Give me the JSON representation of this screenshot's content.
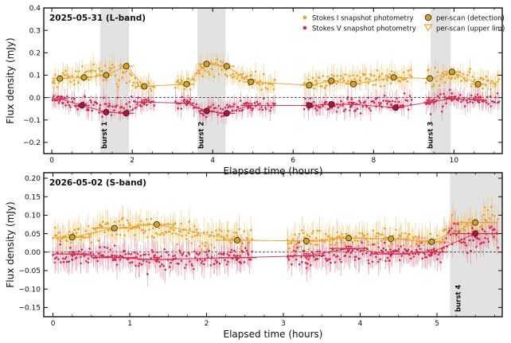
{
  "colors": {
    "stokes_i": "#e8a32a",
    "stokes_i_err": "#f0c064",
    "stokes_v": "#d1284f",
    "stokes_v_err": "#e57a92",
    "burst_shade": "#e2e2e2",
    "detection_face_i": "#d6a21c",
    "detection_face_v": "#b0123d"
  },
  "legend": {
    "stokes_i": "Stokes I  snapshot photometry",
    "stokes_v": "Stokes V  snapshot photometry",
    "detection": "per-scan (detection)",
    "upper_limit": "per-scan (upper lim)"
  },
  "chart_data": [
    {
      "type": "scatter",
      "title": "2025-05-31 (L-band)",
      "xlabel": "Elapsed time (hours)",
      "ylabel": "Flux density (mJy)",
      "xlim": [
        -0.2,
        11.2
      ],
      "ylim": [
        -0.25,
        0.4
      ],
      "xticks": [
        0,
        2,
        4,
        6,
        8,
        10
      ],
      "yticks": [
        -0.2,
        -0.1,
        0.0,
        0.1,
        0.2,
        0.3,
        0.4
      ],
      "ytick_labels": [
        "−0.2",
        "−0.1",
        "0.0",
        "0.1",
        "0.2",
        "0.3",
        "0.4"
      ],
      "zero_line": true,
      "legend_position": "top-right",
      "bursts": [
        {
          "label": "burst 1",
          "x0": 1.2,
          "x1": 1.92
        },
        {
          "label": "burst 2",
          "x0": 3.62,
          "x1": 4.32
        },
        {
          "label": "burst 3",
          "x0": 9.42,
          "x1": 9.92
        }
      ],
      "gaps": [
        [
          2.55,
          3.05
        ],
        [
          5.55,
          6.25
        ],
        [
          8.95,
          9.3
        ]
      ],
      "stokes_i_level": [
        [
          0.0,
          0.075
        ],
        [
          1.4,
          0.13
        ],
        [
          2.3,
          0.06
        ],
        [
          3.4,
          0.065
        ],
        [
          3.9,
          0.15
        ],
        [
          5.2,
          0.07
        ],
        [
          6.3,
          0.07
        ],
        [
          8.0,
          0.085
        ],
        [
          9.6,
          0.1
        ],
        [
          10.4,
          0.085
        ],
        [
          11.1,
          0.07
        ]
      ],
      "stokes_v_level": [
        [
          0.0,
          -0.005
        ],
        [
          1.3,
          -0.05
        ],
        [
          2.3,
          -0.02
        ],
        [
          3.4,
          -0.025
        ],
        [
          3.9,
          -0.06
        ],
        [
          5.2,
          -0.035
        ],
        [
          6.3,
          -0.04
        ],
        [
          8.0,
          -0.03
        ],
        [
          9.6,
          -0.01
        ],
        [
          10.4,
          -0.01
        ],
        [
          11.1,
          -0.01
        ]
      ],
      "stokes_i_noise": 0.045,
      "stokes_v_noise": 0.04,
      "points_per_hour": 34,
      "scan_i": [
        {
          "x": 0.2,
          "y": 0.085,
          "xerr": 0.2,
          "yerr": 0.012,
          "detect": true
        },
        {
          "x": 0.8,
          "y": 0.09,
          "xerr": 0.2,
          "yerr": 0.012,
          "detect": true
        },
        {
          "x": 1.35,
          "y": 0.1,
          "xerr": 0.15,
          "yerr": 0.015,
          "detect": true
        },
        {
          "x": 1.85,
          "y": 0.14,
          "xerr": 0.2,
          "yerr": 0.015,
          "detect": true
        },
        {
          "x": 2.3,
          "y": 0.05,
          "xerr": 0.2,
          "yerr": 0.012,
          "detect": true
        },
        {
          "x": 3.35,
          "y": 0.06,
          "xerr": 0.2,
          "yerr": 0.012,
          "detect": true
        },
        {
          "x": 3.85,
          "y": 0.15,
          "xerr": 0.2,
          "yerr": 0.015,
          "detect": true
        },
        {
          "x": 4.35,
          "y": 0.14,
          "xerr": 0.2,
          "yerr": 0.015,
          "detect": true
        },
        {
          "x": 4.95,
          "y": 0.07,
          "xerr": 0.2,
          "yerr": 0.012,
          "detect": true
        },
        {
          "x": 6.4,
          "y": 0.055,
          "xerr": 0.2,
          "yerr": 0.012,
          "detect": true
        },
        {
          "x": 6.95,
          "y": 0.075,
          "xerr": 0.2,
          "yerr": 0.012,
          "detect": true
        },
        {
          "x": 7.5,
          "y": 0.06,
          "xerr": 0.2,
          "yerr": 0.012,
          "detect": true
        },
        {
          "x": 8.5,
          "y": 0.09,
          "xerr": 0.2,
          "yerr": 0.012,
          "detect": true
        },
        {
          "x": 9.4,
          "y": 0.085,
          "xerr": 0.15,
          "yerr": 0.012,
          "detect": true
        },
        {
          "x": 9.95,
          "y": 0.115,
          "xerr": 0.2,
          "yerr": 0.015,
          "detect": true
        },
        {
          "x": 10.6,
          "y": 0.06,
          "xerr": 0.2,
          "yerr": 0.012,
          "detect": true
        }
      ],
      "scan_v": [
        {
          "x": 0.2,
          "y": -0.005,
          "xerr": 0.2,
          "yerr": 0.012,
          "detect": false
        },
        {
          "x": 0.75,
          "y": -0.035,
          "xerr": 0.2,
          "yerr": 0.012,
          "detect": true
        },
        {
          "x": 1.35,
          "y": -0.065,
          "xerr": 0.15,
          "yerr": 0.015,
          "detect": true
        },
        {
          "x": 1.85,
          "y": -0.07,
          "xerr": 0.2,
          "yerr": 0.015,
          "detect": true
        },
        {
          "x": 2.3,
          "y": -0.02,
          "xerr": 0.2,
          "yerr": 0.012,
          "detect": false
        },
        {
          "x": 3.35,
          "y": -0.025,
          "xerr": 0.2,
          "yerr": 0.012,
          "detect": false
        },
        {
          "x": 3.85,
          "y": -0.06,
          "xerr": 0.2,
          "yerr": 0.015,
          "detect": true
        },
        {
          "x": 4.35,
          "y": -0.07,
          "xerr": 0.2,
          "yerr": 0.015,
          "detect": true
        },
        {
          "x": 4.9,
          "y": -0.035,
          "xerr": 0.2,
          "yerr": 0.012,
          "detect": false
        },
        {
          "x": 6.4,
          "y": -0.035,
          "xerr": 0.2,
          "yerr": 0.012,
          "detect": true
        },
        {
          "x": 6.95,
          "y": -0.03,
          "xerr": 0.2,
          "yerr": 0.012,
          "detect": true
        },
        {
          "x": 7.45,
          "y": -0.03,
          "xerr": 0.2,
          "yerr": 0.012,
          "detect": false
        },
        {
          "x": 8.55,
          "y": -0.045,
          "xerr": 0.2,
          "yerr": 0.012,
          "detect": true
        },
        {
          "x": 9.4,
          "y": -0.02,
          "xerr": 0.15,
          "yerr": 0.012,
          "detect": false
        },
        {
          "x": 9.95,
          "y": -0.005,
          "xerr": 0.2,
          "yerr": 0.012,
          "detect": false
        },
        {
          "x": 10.6,
          "y": -0.01,
          "xerr": 0.2,
          "yerr": 0.012,
          "detect": false
        }
      ]
    },
    {
      "type": "scatter",
      "title": "2026-05-02 (S-band)",
      "xlabel": "Elapsed time (hours)",
      "ylabel": "Flux density (mJy)",
      "xlim": [
        -0.12,
        5.85
      ],
      "ylim": [
        -0.175,
        0.215
      ],
      "xticks": [
        0,
        1,
        2,
        3,
        4,
        5
      ],
      "yticks": [
        -0.15,
        -0.1,
        -0.05,
        0.0,
        0.05,
        0.1,
        0.15,
        0.2
      ],
      "ytick_labels": [
        "−0.15",
        "−0.10",
        "−0.05",
        "0.00",
        "0.05",
        "0.10",
        "0.15",
        "0.20"
      ],
      "zero_line": true,
      "legend_position": "none",
      "bursts": [
        {
          "label": "burst 4",
          "x0": 5.17,
          "x1": 5.85
        }
      ],
      "gaps": [
        [
          2.6,
          3.05
        ]
      ],
      "stokes_i_level": [
        [
          0.0,
          0.045
        ],
        [
          0.8,
          0.065
        ],
        [
          1.5,
          0.07
        ],
        [
          2.0,
          0.035
        ],
        [
          3.1,
          0.035
        ],
        [
          4.0,
          0.035
        ],
        [
          5.0,
          0.03
        ],
        [
          5.2,
          0.06
        ],
        [
          5.8,
          0.085
        ]
      ],
      "stokes_v_level": [
        [
          0.0,
          -0.005
        ],
        [
          0.8,
          -0.015
        ],
        [
          1.5,
          -0.02
        ],
        [
          2.0,
          -0.015
        ],
        [
          3.1,
          -0.01
        ],
        [
          4.0,
          -0.005
        ],
        [
          5.0,
          0.0
        ],
        [
          5.2,
          0.04
        ],
        [
          5.8,
          0.05
        ]
      ],
      "stokes_i_noise": 0.035,
      "stokes_v_noise": 0.035,
      "points_per_hour": 72,
      "scan_i": [
        {
          "x": 0.25,
          "y": 0.04,
          "xerr": 0.25,
          "yerr": 0.008,
          "detect": true
        },
        {
          "x": 0.8,
          "y": 0.065,
          "xerr": 0.3,
          "yerr": 0.008,
          "detect": true
        },
        {
          "x": 1.35,
          "y": 0.075,
          "xerr": 0.25,
          "yerr": 0.008,
          "detect": true
        },
        {
          "x": 2.4,
          "y": 0.032,
          "xerr": 0.25,
          "yerr": 0.008,
          "detect": true
        },
        {
          "x": 3.3,
          "y": 0.03,
          "xerr": 0.25,
          "yerr": 0.008,
          "detect": true
        },
        {
          "x": 3.85,
          "y": 0.038,
          "xerr": 0.25,
          "yerr": 0.008,
          "detect": true
        },
        {
          "x": 4.4,
          "y": 0.036,
          "xerr": 0.25,
          "yerr": 0.008,
          "detect": true
        },
        {
          "x": 4.93,
          "y": 0.028,
          "xerr": 0.2,
          "yerr": 0.008,
          "detect": true
        },
        {
          "x": 5.5,
          "y": 0.08,
          "xerr": 0.3,
          "yerr": 0.01,
          "detect": true
        }
      ],
      "scan_v": [
        {
          "x": 0.25,
          "y": -0.005,
          "xerr": 0.25,
          "yerr": 0.008,
          "detect": false
        },
        {
          "x": 0.8,
          "y": -0.015,
          "xerr": 0.3,
          "yerr": 0.008,
          "detect": false
        },
        {
          "x": 1.35,
          "y": -0.02,
          "xerr": 0.25,
          "yerr": 0.008,
          "detect": false
        },
        {
          "x": 2.4,
          "y": -0.015,
          "xerr": 0.25,
          "yerr": 0.008,
          "detect": false
        },
        {
          "x": 3.3,
          "y": -0.01,
          "xerr": 0.25,
          "yerr": 0.008,
          "detect": false
        },
        {
          "x": 3.85,
          "y": 0.01,
          "xerr": 0.25,
          "yerr": 0.008,
          "detect": false
        },
        {
          "x": 4.4,
          "y": -0.005,
          "xerr": 0.25,
          "yerr": 0.008,
          "detect": false
        },
        {
          "x": 4.93,
          "y": 0.0,
          "xerr": 0.2,
          "yerr": 0.008,
          "detect": false
        },
        {
          "x": 5.5,
          "y": 0.05,
          "xerr": 0.3,
          "yerr": 0.01,
          "detect": true
        }
      ]
    }
  ]
}
